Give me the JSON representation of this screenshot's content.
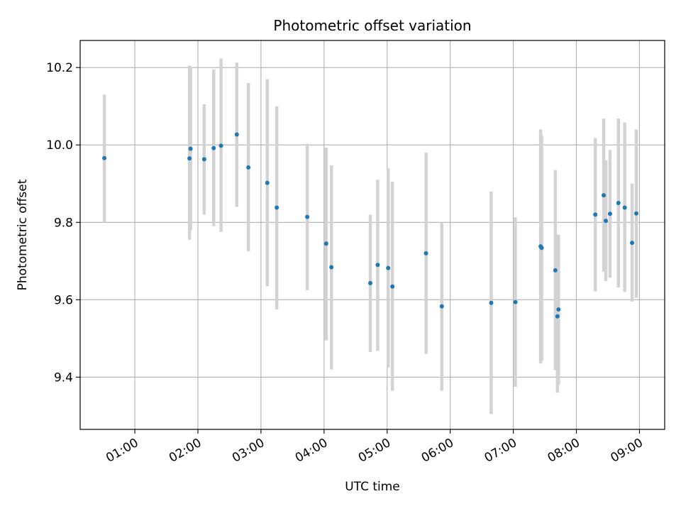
{
  "chart_data": {
    "type": "scatter",
    "title": "Photometric offset variation",
    "xlabel": "UTC time",
    "ylabel": "Photometric offset",
    "xlim": [
      "00:08",
      "09:24"
    ],
    "ylim": [
      9.265,
      10.27
    ],
    "x_ticks": [
      "01:00",
      "02:00",
      "03:00",
      "04:00",
      "05:00",
      "06:00",
      "07:00",
      "08:00",
      "09:00"
    ],
    "y_ticks": [
      "9.4",
      "9.6",
      "9.8",
      "10.0",
      "10.2"
    ],
    "grid": true,
    "colors": {
      "point": "#1f77b4",
      "errorbar": "#d3d3d3",
      "grid": "#b0b0b0"
    },
    "series": [
      {
        "points": [
          {
            "x": "00:31",
            "y": 9.966,
            "ylo": 9.8,
            "yhi": 10.13
          },
          {
            "x": "01:52",
            "y": 9.965,
            "ylo": 9.755,
            "yhi": 10.205
          },
          {
            "x": "01:53",
            "y": 9.99,
            "ylo": 9.78,
            "yhi": 10.2
          },
          {
            "x": "02:06",
            "y": 9.963,
            "ylo": 9.82,
            "yhi": 10.105
          },
          {
            "x": "02:15",
            "y": 9.992,
            "ylo": 9.79,
            "yhi": 10.195
          },
          {
            "x": "02:22",
            "y": 9.998,
            "ylo": 9.775,
            "yhi": 10.223
          },
          {
            "x": "02:37",
            "y": 10.027,
            "ylo": 9.84,
            "yhi": 10.213
          },
          {
            "x": "02:48",
            "y": 9.942,
            "ylo": 9.725,
            "yhi": 10.16
          },
          {
            "x": "03:06",
            "y": 9.902,
            "ylo": 9.635,
            "yhi": 10.17
          },
          {
            "x": "03:15",
            "y": 9.838,
            "ylo": 9.575,
            "yhi": 10.1
          },
          {
            "x": "03:44",
            "y": 9.814,
            "ylo": 9.625,
            "yhi": 10.003
          },
          {
            "x": "04:02",
            "y": 9.745,
            "ylo": 9.495,
            "yhi": 9.993
          },
          {
            "x": "04:07",
            "y": 9.684,
            "ylo": 9.42,
            "yhi": 9.947
          },
          {
            "x": "04:44",
            "y": 9.643,
            "ylo": 9.465,
            "yhi": 9.82
          },
          {
            "x": "04:51",
            "y": 9.69,
            "ylo": 9.468,
            "yhi": 9.91
          },
          {
            "x": "05:01",
            "y": 9.682,
            "ylo": 9.425,
            "yhi": 9.94
          },
          {
            "x": "05:05",
            "y": 9.634,
            "ylo": 9.365,
            "yhi": 9.905
          },
          {
            "x": "05:37",
            "y": 9.72,
            "ylo": 9.46,
            "yhi": 9.98
          },
          {
            "x": "05:52",
            "y": 9.583,
            "ylo": 9.365,
            "yhi": 9.8
          },
          {
            "x": "06:39",
            "y": 9.592,
            "ylo": 9.305,
            "yhi": 9.88
          },
          {
            "x": "07:02",
            "y": 9.594,
            "ylo": 9.375,
            "yhi": 9.813
          },
          {
            "x": "07:26",
            "y": 9.738,
            "ylo": 9.435,
            "yhi": 10.04
          },
          {
            "x": "07:27",
            "y": 9.734,
            "ylo": 9.443,
            "yhi": 10.025
          },
          {
            "x": "07:40",
            "y": 9.676,
            "ylo": 9.418,
            "yhi": 9.935
          },
          {
            "x": "07:42",
            "y": 9.557,
            "ylo": 9.36,
            "yhi": 9.768
          },
          {
            "x": "07:43",
            "y": 9.575,
            "ylo": 9.38,
            "yhi": 9.768
          },
          {
            "x": "08:18",
            "y": 9.82,
            "ylo": 9.622,
            "yhi": 10.018
          },
          {
            "x": "08:26",
            "y": 9.87,
            "ylo": 9.672,
            "yhi": 10.068
          },
          {
            "x": "08:28",
            "y": 9.804,
            "ylo": 9.648,
            "yhi": 9.96
          },
          {
            "x": "08:32",
            "y": 9.822,
            "ylo": 9.657,
            "yhi": 9.987
          },
          {
            "x": "08:40",
            "y": 9.85,
            "ylo": 9.632,
            "yhi": 10.068
          },
          {
            "x": "08:46",
            "y": 9.838,
            "ylo": 9.62,
            "yhi": 10.058
          },
          {
            "x": "08:53",
            "y": 9.747,
            "ylo": 9.595,
            "yhi": 9.9
          },
          {
            "x": "08:57",
            "y": 9.823,
            "ylo": 9.605,
            "yhi": 10.04
          }
        ]
      }
    ]
  }
}
